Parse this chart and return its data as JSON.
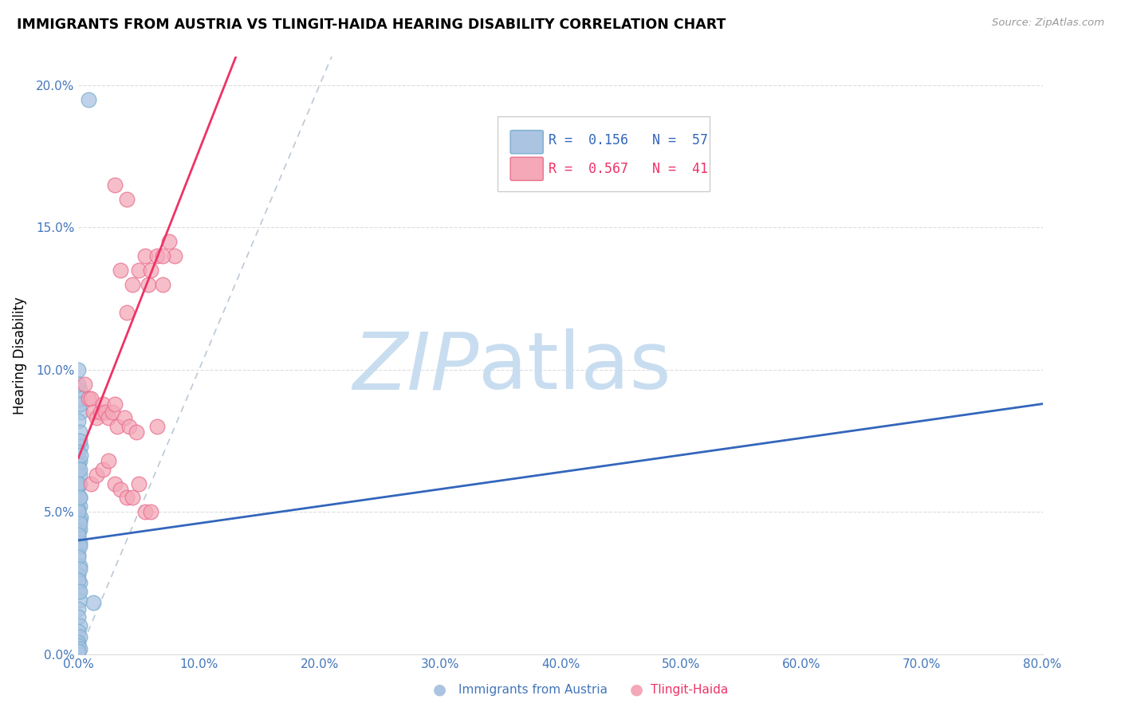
{
  "title": "IMMIGRANTS FROM AUSTRIA VS TLINGIT-HAIDA HEARING DISABILITY CORRELATION CHART",
  "source": "Source: ZipAtlas.com",
  "xlabel_blue": "Immigrants from Austria",
  "xlabel_pink": "Tlingit-Haida",
  "ylabel": "Hearing Disability",
  "legend_blue_r": "0.156",
  "legend_blue_n": "57",
  "legend_pink_r": "0.567",
  "legend_pink_n": "41",
  "xlim": [
    0,
    0.8
  ],
  "ylim": [
    0,
    0.21
  ],
  "xticks": [
    0.0,
    0.1,
    0.2,
    0.3,
    0.4,
    0.5,
    0.6,
    0.7,
    0.8
  ],
  "yticks": [
    0.0,
    0.05,
    0.1,
    0.15,
    0.2
  ],
  "blue_color": "#aac4e2",
  "pink_color": "#f4a8b8",
  "blue_edge": "#7aaed0",
  "pink_edge": "#e87090",
  "trend_blue": "#3366bb",
  "trend_pink": "#ee3366",
  "diag_color": "#aabbcc",
  "watermark_color": "#c8ddf0",
  "blue_scatter_x": [
    0.008,
    0.001,
    0.002,
    0.001,
    0.0,
    0.0,
    0.001,
    0.0,
    0.001,
    0.002,
    0.001,
    0.0,
    0.001,
    0.0,
    0.001,
    0.002,
    0.001,
    0.0,
    0.0,
    0.001,
    0.0,
    0.0,
    0.001,
    0.0,
    0.001,
    0.0,
    0.001,
    0.0,
    0.001,
    0.0,
    0.001,
    0.0,
    0.001,
    0.0,
    0.001,
    0.0,
    0.0,
    0.001,
    0.0,
    0.001,
    0.0,
    0.002,
    0.001,
    0.0,
    0.001,
    0.012,
    0.0,
    0.001,
    0.0,
    0.001,
    0.0,
    0.001,
    0.0,
    0.001,
    0.0,
    0.001,
    0.0
  ],
  "blue_scatter_y": [
    0.195,
    0.093,
    0.085,
    0.09,
    0.1,
    0.095,
    0.088,
    0.082,
    0.078,
    0.073,
    0.068,
    0.065,
    0.06,
    0.056,
    0.052,
    0.048,
    0.044,
    0.041,
    0.038,
    0.075,
    0.071,
    0.067,
    0.063,
    0.059,
    0.055,
    0.051,
    0.047,
    0.043,
    0.039,
    0.035,
    0.031,
    0.028,
    0.025,
    0.022,
    0.019,
    0.016,
    0.013,
    0.01,
    0.008,
    0.006,
    0.004,
    0.07,
    0.065,
    0.06,
    0.055,
    0.018,
    0.05,
    0.046,
    0.042,
    0.038,
    0.034,
    0.03,
    0.026,
    0.022,
    0.003,
    0.002,
    0.001
  ],
  "pink_scatter_x": [
    0.005,
    0.008,
    0.01,
    0.012,
    0.015,
    0.018,
    0.02,
    0.022,
    0.025,
    0.028,
    0.03,
    0.032,
    0.035,
    0.038,
    0.04,
    0.042,
    0.045,
    0.048,
    0.05,
    0.055,
    0.058,
    0.06,
    0.065,
    0.07,
    0.075,
    0.08,
    0.01,
    0.015,
    0.02,
    0.025,
    0.03,
    0.035,
    0.04,
    0.045,
    0.05,
    0.055,
    0.06,
    0.065,
    0.07,
    0.03,
    0.04
  ],
  "pink_scatter_y": [
    0.095,
    0.09,
    0.09,
    0.085,
    0.083,
    0.085,
    0.088,
    0.085,
    0.083,
    0.085,
    0.088,
    0.08,
    0.135,
    0.083,
    0.12,
    0.08,
    0.13,
    0.078,
    0.135,
    0.14,
    0.13,
    0.135,
    0.14,
    0.13,
    0.145,
    0.14,
    0.06,
    0.063,
    0.065,
    0.068,
    0.06,
    0.058,
    0.055,
    0.055,
    0.06,
    0.05,
    0.05,
    0.08,
    0.14,
    0.165,
    0.16
  ]
}
